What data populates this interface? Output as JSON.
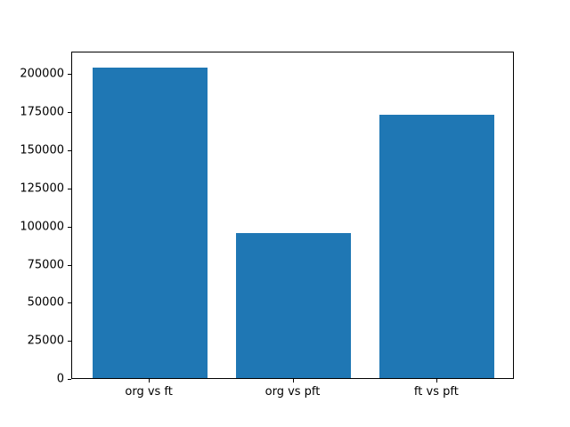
{
  "chart_data": {
    "type": "bar",
    "categories": [
      "org vs ft",
      "org vs pft",
      "ft vs pft"
    ],
    "values": [
      204000,
      95000,
      173000
    ],
    "title": "",
    "xlabel": "",
    "ylabel": "",
    "ylim": [
      0,
      214800
    ],
    "yticks": [
      0,
      25000,
      50000,
      75000,
      100000,
      125000,
      150000,
      175000,
      200000
    ],
    "bar_color": "#1f77b4",
    "axis_color": "#000000",
    "background_color": "#ffffff",
    "grid": false,
    "legend": null,
    "bar_width_fraction": 0.8,
    "x_margin_fraction": 0.14
  }
}
